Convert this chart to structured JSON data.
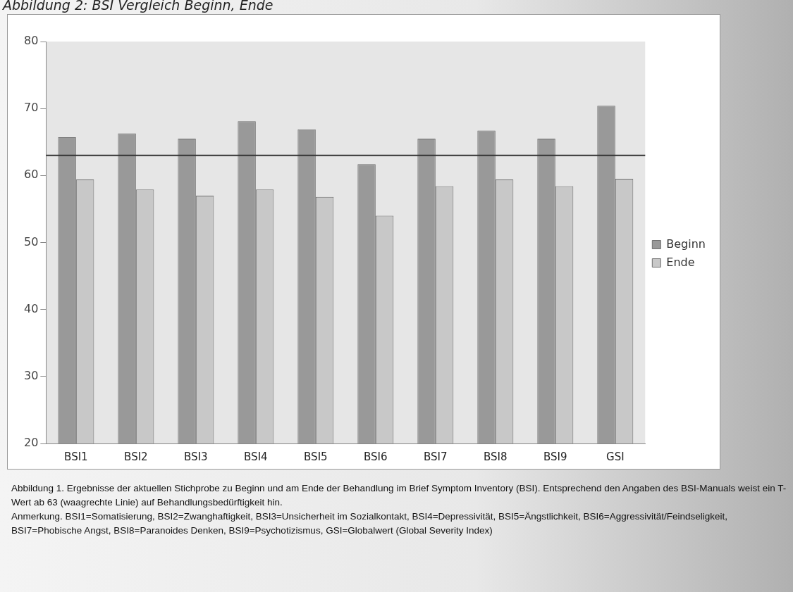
{
  "chart_data": {
    "type": "bar",
    "title": "Abbildung 2: BSI Vergleich Beginn, Ende",
    "categories": [
      "BSI1",
      "BSI2",
      "BSI3",
      "BSI4",
      "BSI5",
      "BSI6",
      "BSI7",
      "BSI8",
      "BSI9",
      "GSI"
    ],
    "series": [
      {
        "name": "Beginn",
        "color": "#999999",
        "values": [
          65.7,
          66.3,
          65.5,
          68.1,
          66.9,
          61.7,
          65.5,
          66.7,
          65.5,
          70.4
        ]
      },
      {
        "name": "Ende",
        "color": "#c8c8c8",
        "values": [
          59.4,
          57.9,
          57.0,
          57.9,
          56.8,
          54.0,
          58.4,
          59.4,
          58.4,
          59.5
        ]
      }
    ],
    "ylim": [
      20,
      80
    ],
    "yticks": [
      20,
      30,
      40,
      50,
      60,
      70,
      80
    ],
    "grid": false,
    "legend": "right",
    "ref_lines": [
      {
        "axis": "y",
        "value": 63,
        "color": "#333333"
      }
    ],
    "annotations": [
      "Abbildung  1. Ergebnisse  der aktuellen Stichprobe zu Beginn und am Ende der Behandlung im Brief Symptom Inventory (BSI). Entsprechend den Angaben des BSI-Manuals weist ein T-Wert ab 63 (waagrechte  Linie) auf Behandlungsbedürftigkeit hin.",
      "Anmerkung.  BSI1=Somatisierung, BSI2=Zwanghaftigkeit, BSI3=Unsicherheit im Sozialkontakt, BSI4=Depressivität, BSI5=Ängstlichkeit, BSI6=Aggressivität/Feindseligkeit, BSI7=Phobische Angst, BSI8=Paranoides  Denken, BSI9=Psychotizismus, GSI=Globalwert (Global Severity Index)"
    ]
  }
}
